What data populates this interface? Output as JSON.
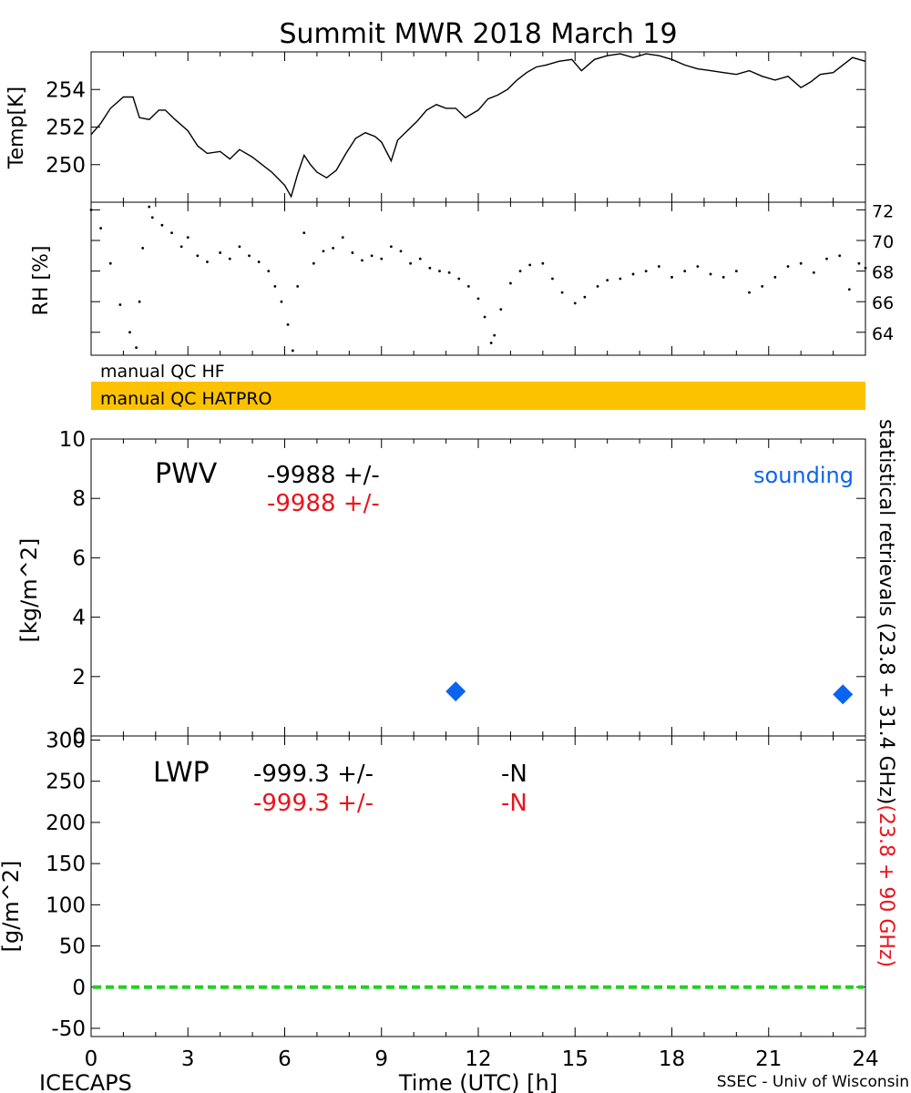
{
  "title": "Summit MWR 2018 March 19",
  "footer": {
    "left": "ICECAPS",
    "center": "Time (UTC) [h]",
    "right": "SSEC - Univ of Wisconsin"
  },
  "x_axis": {
    "range": [
      0,
      24
    ],
    "ticks": [
      0,
      3,
      6,
      9,
      12,
      15,
      18,
      21,
      24
    ],
    "tick_labels": [
      "0",
      "3",
      "6",
      "9",
      "12",
      "15",
      "18",
      "21",
      "24"
    ]
  },
  "right_labels": {
    "black": "statistical retrievals (23.8 + 31.4 GHz)",
    "red": "(23.8 + 90 GHz)"
  },
  "qc_bars": {
    "hf": {
      "label": "manual QC HF",
      "color": "#ffffff"
    },
    "hatpro": {
      "label": "manual QC HATPRO",
      "color": "#fcc200"
    }
  },
  "colors": {
    "line": "#000000",
    "red": "#e8141c",
    "sounding": "#0a64f0",
    "zero_line": "#22d022"
  },
  "chart_data": [
    {
      "type": "line",
      "id": "temp",
      "ylabel": "Temp[K]",
      "ylim": [
        248,
        256
      ],
      "yticks": [
        250,
        252,
        254
      ],
      "ytick_labels": [
        "250",
        "252",
        "254"
      ],
      "series": [
        {
          "x": [
            0.0,
            0.3,
            0.6,
            1.0,
            1.3,
            1.5,
            1.8,
            2.1,
            2.3,
            2.6,
            3.0,
            3.3,
            3.6,
            4.0,
            4.3,
            4.6,
            5.0,
            5.3,
            5.6,
            6.0,
            6.2,
            6.4,
            6.6,
            6.8,
            7.0,
            7.3,
            7.6,
            7.9,
            8.2,
            8.5,
            8.8,
            9.0,
            9.3,
            9.5,
            9.8,
            10.1,
            10.4,
            10.7,
            11.0,
            11.3,
            11.6,
            12.0,
            12.3,
            12.6,
            12.9,
            13.2,
            13.5,
            13.8,
            14.1,
            14.5,
            14.9,
            15.2,
            15.6,
            16.0,
            16.4,
            16.8,
            17.2,
            17.6,
            18.0,
            18.4,
            18.8,
            19.2,
            19.6,
            20.0,
            20.4,
            20.8,
            21.2,
            21.6,
            22.0,
            22.3,
            22.6,
            23.0,
            23.3,
            23.6,
            24.0
          ],
          "y": [
            251.6,
            252.2,
            253.0,
            253.6,
            253.6,
            252.5,
            252.4,
            252.9,
            252.9,
            252.4,
            251.8,
            251.0,
            250.6,
            250.7,
            250.3,
            250.8,
            250.4,
            250.0,
            249.6,
            248.9,
            248.3,
            249.5,
            250.5,
            250.0,
            249.6,
            249.3,
            249.7,
            250.6,
            251.4,
            251.7,
            251.5,
            251.2,
            250.2,
            251.3,
            251.8,
            252.3,
            252.9,
            253.2,
            253.0,
            253.0,
            252.5,
            252.9,
            253.5,
            253.7,
            254.0,
            254.5,
            254.9,
            255.2,
            255.3,
            255.5,
            255.6,
            255.0,
            255.6,
            255.8,
            255.9,
            255.7,
            255.9,
            255.8,
            255.6,
            255.3,
            255.1,
            255.0,
            254.9,
            254.8,
            255.0,
            254.7,
            254.5,
            254.7,
            254.1,
            254.4,
            254.8,
            254.9,
            255.3,
            255.7,
            255.5
          ]
        }
      ]
    },
    {
      "type": "scatter",
      "id": "rh",
      "ylabel": "RH [%]",
      "ylim": [
        62.5,
        72.5
      ],
      "yticks": [
        64,
        66,
        68,
        70,
        72
      ],
      "ytick_labels": [
        "64",
        "66",
        "68",
        "70",
        "72"
      ],
      "series": [
        {
          "x": [
            0.0,
            0.3,
            0.6,
            0.9,
            1.2,
            1.4,
            1.5,
            1.6,
            1.8,
            1.9,
            2.2,
            2.5,
            2.8,
            3.0,
            3.3,
            3.6,
            4.0,
            4.3,
            4.6,
            4.9,
            5.2,
            5.5,
            5.7,
            5.9,
            6.1,
            6.25,
            6.4,
            6.6,
            6.9,
            7.2,
            7.5,
            7.8,
            8.1,
            8.4,
            8.7,
            9.0,
            9.3,
            9.6,
            9.9,
            10.2,
            10.5,
            10.8,
            11.1,
            11.4,
            11.7,
            12.0,
            12.2,
            12.4,
            12.5,
            12.7,
            13.0,
            13.3,
            13.6,
            14.0,
            14.3,
            14.6,
            15.0,
            15.3,
            15.7,
            16.0,
            16.4,
            16.8,
            17.2,
            17.6,
            18.0,
            18.4,
            18.8,
            19.2,
            19.6,
            20.0,
            20.4,
            20.8,
            21.2,
            21.6,
            22.0,
            22.4,
            22.8,
            23.2,
            23.5,
            23.8,
            24.0
          ],
          "y": [
            72.0,
            70.8,
            68.5,
            65.8,
            64.0,
            63.0,
            66.0,
            69.5,
            72.2,
            71.5,
            71.0,
            70.5,
            69.6,
            70.2,
            69.0,
            68.6,
            69.2,
            68.8,
            69.6,
            69.0,
            68.6,
            68.0,
            67.0,
            66.0,
            64.5,
            62.8,
            67.0,
            70.5,
            68.5,
            69.3,
            69.5,
            70.2,
            69.2,
            68.7,
            69.0,
            68.8,
            69.6,
            69.3,
            68.5,
            68.8,
            68.2,
            68.0,
            67.9,
            67.5,
            67.0,
            66.2,
            65.0,
            63.3,
            63.8,
            65.5,
            67.2,
            68.0,
            68.4,
            68.5,
            67.5,
            66.6,
            65.9,
            66.3,
            67.0,
            67.4,
            67.5,
            67.8,
            68.0,
            68.3,
            67.6,
            68.0,
            68.3,
            67.8,
            67.6,
            68.0,
            66.6,
            67.0,
            67.6,
            68.3,
            68.5,
            67.9,
            68.8,
            69.0,
            66.8,
            68.5,
            68.2
          ]
        }
      ]
    },
    {
      "type": "scatter",
      "id": "pwv",
      "title": "PWV",
      "ylabel": "[kg/m^2]",
      "ylim": [
        0,
        10
      ],
      "yticks": [
        0,
        2,
        4,
        6,
        8,
        10
      ],
      "ytick_labels": [
        "0",
        "2",
        "4",
        "6",
        "8",
        "10"
      ],
      "annotations": [
        {
          "text": "-9988 +/-",
          "color": "black"
        },
        {
          "text": "-9988 +/-",
          "color": "red"
        }
      ],
      "series": [
        {
          "name": "sounding",
          "x": [
            11.3,
            23.3
          ],
          "y": [
            1.5,
            1.4
          ]
        }
      ]
    },
    {
      "type": "line",
      "id": "lwp",
      "title": "LWP",
      "ylabel": "[g/m^2]",
      "ylim": [
        -60,
        305
      ],
      "yticks": [
        -50,
        0,
        50,
        100,
        150,
        200,
        250,
        300
      ],
      "ytick_labels": [
        "-50",
        "0",
        "50",
        "100",
        "150",
        "200",
        "250",
        "300"
      ],
      "annotations": [
        {
          "text": "-999.3 +/-",
          "flag": "-N",
          "color": "black"
        },
        {
          "text": "-999.3 +/-",
          "flag": "-N",
          "color": "red"
        }
      ],
      "series": [
        {
          "x": [
            0,
            24
          ],
          "y": [
            0,
            0
          ]
        }
      ]
    }
  ]
}
